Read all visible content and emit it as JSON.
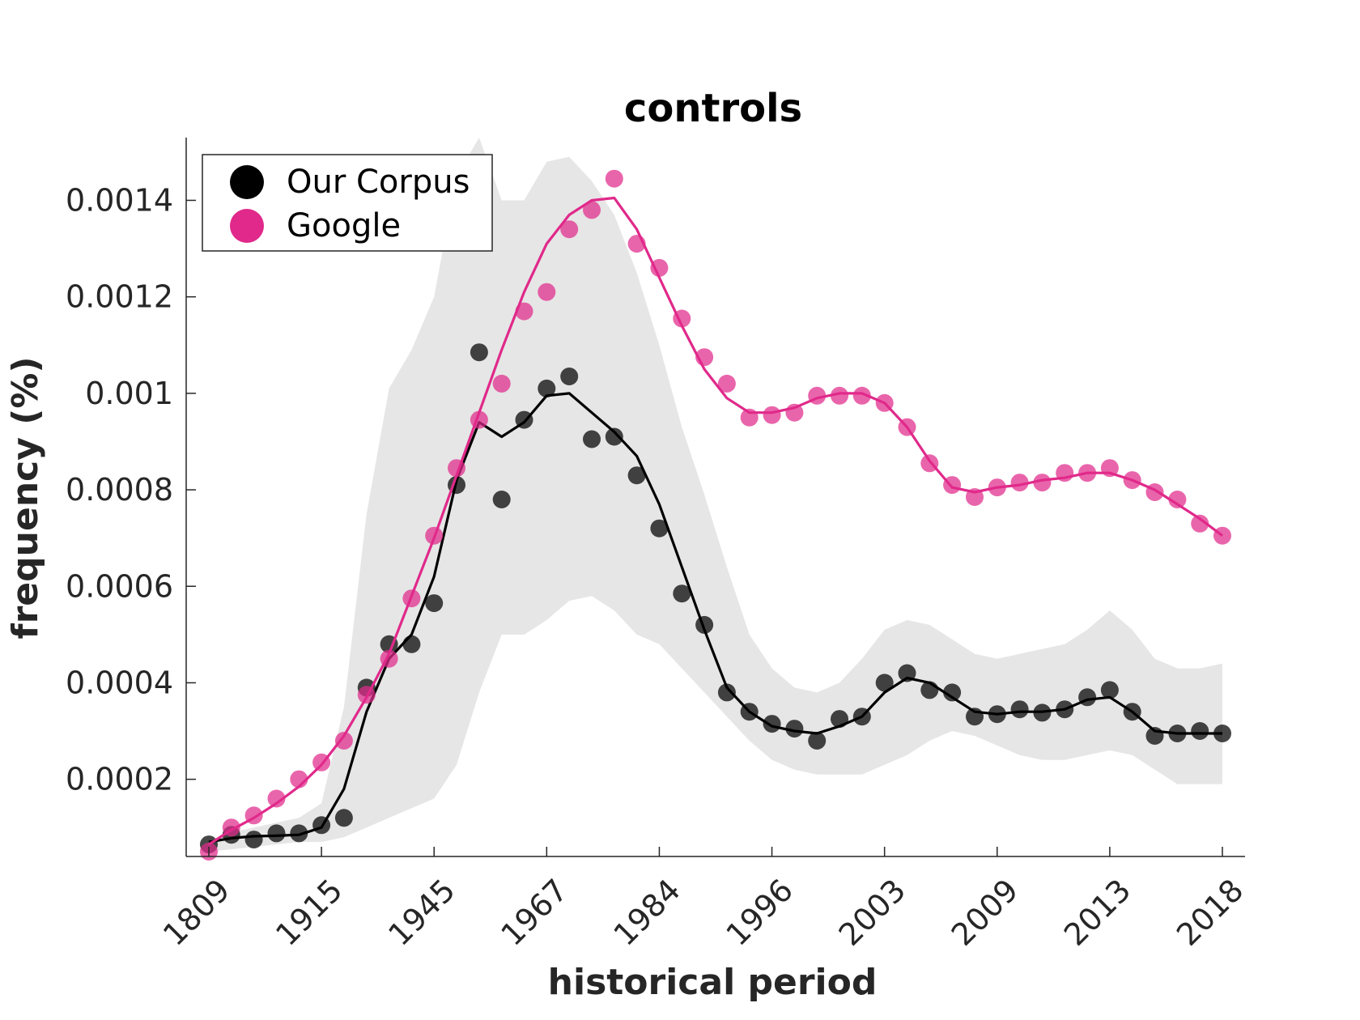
{
  "chart_data": {
    "type": "line",
    "title": "controls",
    "xlabel": "historical period",
    "ylabel": "frequency (%)",
    "x_tick_labels": [
      "1809",
      "1915",
      "1945",
      "1967",
      "1984",
      "1996",
      "2003",
      "2009",
      "2013",
      "2018"
    ],
    "y_ticks": [
      0.0002,
      0.0004,
      0.0006,
      0.0008,
      0.001,
      0.0012,
      0.0014
    ],
    "y_tick_labels": [
      "0.0002",
      "0.0004",
      "0.0006",
      "0.0008",
      "0.001",
      "0.0012",
      "0.0014"
    ],
    "ylim": [
      4e-05,
      0.00153
    ],
    "legend_position": "top-left",
    "colors": {
      "our_corpus": "#000000",
      "google": "#e0298a",
      "band": "#e6e6e6"
    },
    "series": [
      {
        "name": "Our Corpus",
        "points": [
          6.5e-05,
          8.5e-05,
          7.5e-05,
          8.8e-05,
          8.8e-05,
          0.000105,
          0.00012,
          0.00039,
          0.00048,
          0.00048,
          0.000565,
          0.00081,
          0.001085,
          0.00078,
          0.000945,
          0.00101,
          0.001035,
          0.000905,
          0.00091,
          0.00083,
          0.00072,
          0.000585,
          0.00052,
          0.00038,
          0.00034,
          0.000315,
          0.000305,
          0.00028,
          0.000325,
          0.00033,
          0.0004,
          0.00042,
          0.000385,
          0.00038,
          0.00033,
          0.000335,
          0.000345,
          0.000338,
          0.000345,
          0.00037,
          0.000385,
          0.00034,
          0.00029,
          0.000295,
          0.0003,
          0.000295
        ],
        "smooth": [
          7e-05,
          7.8e-05,
          8.2e-05,
          8.3e-05,
          8.5e-05,
          0.0001,
          0.00018,
          0.00034,
          0.00045,
          0.0005,
          0.00062,
          0.00082,
          0.00094,
          0.00091,
          0.00094,
          0.000995,
          0.001,
          0.00096,
          0.00092,
          0.00087,
          0.00077,
          0.00064,
          0.00051,
          0.00039,
          0.00034,
          0.00031,
          0.0003,
          0.000295,
          0.00031,
          0.00033,
          0.00038,
          0.00041,
          0.0004,
          0.00037,
          0.00034,
          0.000335,
          0.00034,
          0.00034,
          0.000345,
          0.000365,
          0.00037,
          0.00034,
          0.0003,
          0.000295,
          0.000295,
          0.000295
        ],
        "band_upper": [
          7e-05,
          9e-05,
          0.0001,
          0.00011,
          0.00012,
          0.00015,
          0.00035,
          0.00075,
          0.00101,
          0.00109,
          0.0012,
          0.00145,
          0.00153,
          0.0014,
          0.0014,
          0.00148,
          0.00149,
          0.00144,
          0.00137,
          0.00125,
          0.0011,
          0.00093,
          0.00079,
          0.00064,
          0.0005,
          0.00043,
          0.00039,
          0.00038,
          0.0004,
          0.00045,
          0.00051,
          0.00053,
          0.00052,
          0.00049,
          0.00046,
          0.00045,
          0.00046,
          0.00047,
          0.00048,
          0.00051,
          0.00055,
          0.00051,
          0.00045,
          0.00043,
          0.00043,
          0.00044
        ],
        "band_lower": [
          5e-05,
          5.5e-05,
          6e-05,
          6.5e-05,
          7e-05,
          7e-05,
          8e-05,
          0.0001,
          0.00012,
          0.00014,
          0.00016,
          0.00023,
          0.00038,
          0.0005,
          0.0005,
          0.00053,
          0.00057,
          0.00058,
          0.00055,
          0.0005,
          0.00048,
          0.00043,
          0.00038,
          0.00033,
          0.00028,
          0.00024,
          0.00022,
          0.00021,
          0.00021,
          0.00021,
          0.00023,
          0.00025,
          0.00028,
          0.0003,
          0.00029,
          0.00027,
          0.00025,
          0.00024,
          0.00024,
          0.00025,
          0.00026,
          0.00025,
          0.00022,
          0.00019,
          0.00019,
          0.00019
        ]
      },
      {
        "name": "Google",
        "points": [
          5e-05,
          0.0001,
          0.000125,
          0.00016,
          0.0002,
          0.000235,
          0.00028,
          0.000375,
          0.00045,
          0.000575,
          0.000705,
          0.000845,
          0.000945,
          0.00102,
          0.00117,
          0.00121,
          0.00134,
          0.00138,
          0.001445,
          0.00131,
          0.00126,
          0.001155,
          0.001075,
          0.00102,
          0.00095,
          0.000955,
          0.00096,
          0.000995,
          0.000995,
          0.000995,
          0.00098,
          0.00093,
          0.000855,
          0.00081,
          0.000785,
          0.000805,
          0.000815,
          0.000815,
          0.000835,
          0.000835,
          0.000845,
          0.00082,
          0.000795,
          0.00078,
          0.00073,
          0.000705
        ],
        "smooth": [
          6.5e-05,
          9.5e-05,
          0.00012,
          0.00015,
          0.000185,
          0.00023,
          0.00029,
          0.00037,
          0.00046,
          0.00058,
          0.0007,
          0.00083,
          0.00096,
          0.00109,
          0.00121,
          0.00131,
          0.00137,
          0.0014,
          0.001405,
          0.00134,
          0.00124,
          0.00114,
          0.00105,
          0.00099,
          0.00096,
          0.00096,
          0.00097,
          0.00099,
          0.001,
          0.001,
          0.00098,
          0.00093,
          0.00086,
          0.000805,
          0.000795,
          0.000805,
          0.00081,
          0.00082,
          0.000825,
          0.000835,
          0.000835,
          0.00082,
          0.0008,
          0.00077,
          0.00074,
          0.000705
        ]
      }
    ]
  }
}
